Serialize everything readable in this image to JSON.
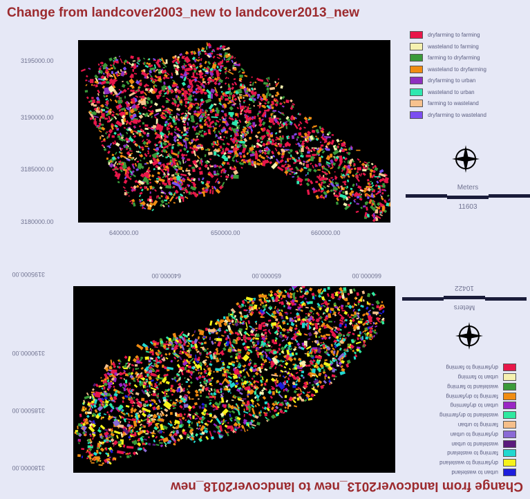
{
  "colors": {
    "background": "#e6e8f6",
    "title": "#9c2a2e",
    "map_background": "#000000"
  },
  "top_map": {
    "title": "Change from landcover2003_new to landcover2013_new",
    "y_ticks": [
      "3195000.00",
      "3190000.00",
      "3185000.00",
      "3180000.00"
    ],
    "x_ticks": [
      "640000.00",
      "650000.00",
      "660000.00"
    ],
    "legend": [
      {
        "label": "dryfarming to farming",
        "color": "#e8174a"
      },
      {
        "label": "wasteland to farming",
        "color": "#f5f1b0"
      },
      {
        "label": "farming to dryfarming",
        "color": "#3a9a3a"
      },
      {
        "label": "wasteland to dryfarming",
        "color": "#f08c12"
      },
      {
        "label": "dryfarming to urban",
        "color": "#8e2fc0"
      },
      {
        "label": "wasteland to urban",
        "color": "#2fe8b0"
      },
      {
        "label": "farming to wasteland",
        "color": "#f7c28e"
      },
      {
        "label": "dryfarming to wasteland",
        "color": "#7b4ef0"
      }
    ],
    "compass_icon": "north-arrow-icon",
    "scale_unit": "Meters",
    "scale_value": "11603"
  },
  "bottom_map": {
    "title": "Change from landcover2013_new to landcover2018_new",
    "y_ticks": [
      "3180000.00",
      "3185000.00",
      "3190000.00",
      "3195000.00"
    ],
    "x_ticks": [
      "640000.00",
      "650000.00",
      "660000.00"
    ],
    "legend": [
      {
        "label": "urban to wasteland",
        "color": "#1d1ddc"
      },
      {
        "label": "dryfarming to wasteland",
        "color": "#f6f21a"
      },
      {
        "label": "farming to wasteland",
        "color": "#21d8d0"
      },
      {
        "label": "wasteland to urban",
        "color": "#5a1a7c"
      },
      {
        "label": "dryfarming to urban",
        "color": "#8a6ad6"
      },
      {
        "label": "farming to urban",
        "color": "#f5be8a"
      },
      {
        "label": "wasteland to dryfarming",
        "color": "#2fe8a0"
      },
      {
        "label": "urban to dryfarming",
        "color": "#9a26c4"
      },
      {
        "label": "farming to dryfarming",
        "color": "#f08c12"
      },
      {
        "label": "wasteland to farming",
        "color": "#3a9a3a"
      },
      {
        "label": "urban to farming",
        "color": "#f5f1b0"
      },
      {
        "label": "dryfarming to farming",
        "color": "#e8174a"
      }
    ],
    "compass_icon": "north-arrow-icon",
    "scale_unit": "Meters",
    "scale_value": "10422"
  }
}
